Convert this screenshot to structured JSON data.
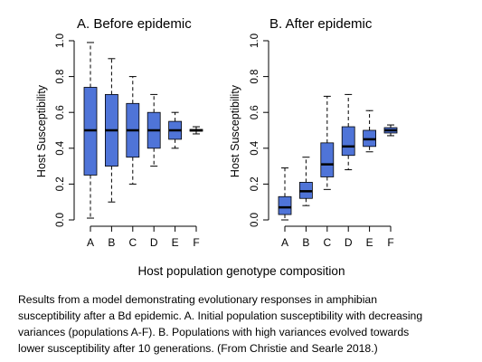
{
  "chart_data": [
    {
      "type": "box",
      "title": "A. Before epidemic",
      "y_label": "Host Susceptibility",
      "categories": [
        "A",
        "B",
        "C",
        "D",
        "E",
        "F"
      ],
      "whisker_low": [
        0.01,
        0.1,
        0.2,
        0.3,
        0.4,
        0.48
      ],
      "q1": [
        0.25,
        0.3,
        0.35,
        0.4,
        0.45,
        0.495
      ],
      "median": [
        0.5,
        0.5,
        0.5,
        0.5,
        0.5,
        0.5
      ],
      "q3": [
        0.74,
        0.7,
        0.65,
        0.6,
        0.55,
        0.505
      ],
      "whisker_high": [
        0.99,
        0.9,
        0.8,
        0.7,
        0.6,
        0.52
      ],
      "color": "#4f74d8",
      "ylim": [
        0,
        1
      ],
      "yticks": [
        {
          "value": 0,
          "label": "0.0"
        },
        0.2,
        0.4,
        0.6,
        0.8,
        {
          "value": 1,
          "label": "1.0"
        }
      ]
    },
    {
      "type": "box",
      "title": "B. After epidemic",
      "y_label": "Host Susceptibility",
      "categories": [
        "A",
        "B",
        "C",
        "D",
        "E",
        "F"
      ],
      "whisker_low": [
        0.0,
        0.08,
        0.17,
        0.28,
        0.38,
        0.47
      ],
      "q1": [
        0.03,
        0.12,
        0.24,
        0.36,
        0.41,
        0.485
      ],
      "median": [
        0.07,
        0.16,
        0.31,
        0.41,
        0.45,
        0.5
      ],
      "q3": [
        0.13,
        0.21,
        0.43,
        0.52,
        0.5,
        0.515
      ],
      "whisker_high": [
        0.29,
        0.35,
        0.69,
        0.7,
        0.61,
        0.53
      ],
      "color": "#4f74d8",
      "ylim": [
        0,
        1
      ],
      "yticks": [
        {
          "value": 0,
          "label": "0.0"
        },
        0.2,
        0.4,
        0.6,
        0.8,
        {
          "value": 1,
          "label": "1.0"
        }
      ]
    }
  ],
  "x_label": "Host population genotype composition",
  "caption": [
    "Results from a model demonstrating evolutionary responses in amphibian",
    "susceptibility after a Bd epidemic. A. Initial population susceptibility with decreasing",
    "variances (populations A-F). B. Populations with high variances evolved towards",
    "lower susceptibility after 10 generations. (From Christie and Searle 2018.)"
  ]
}
